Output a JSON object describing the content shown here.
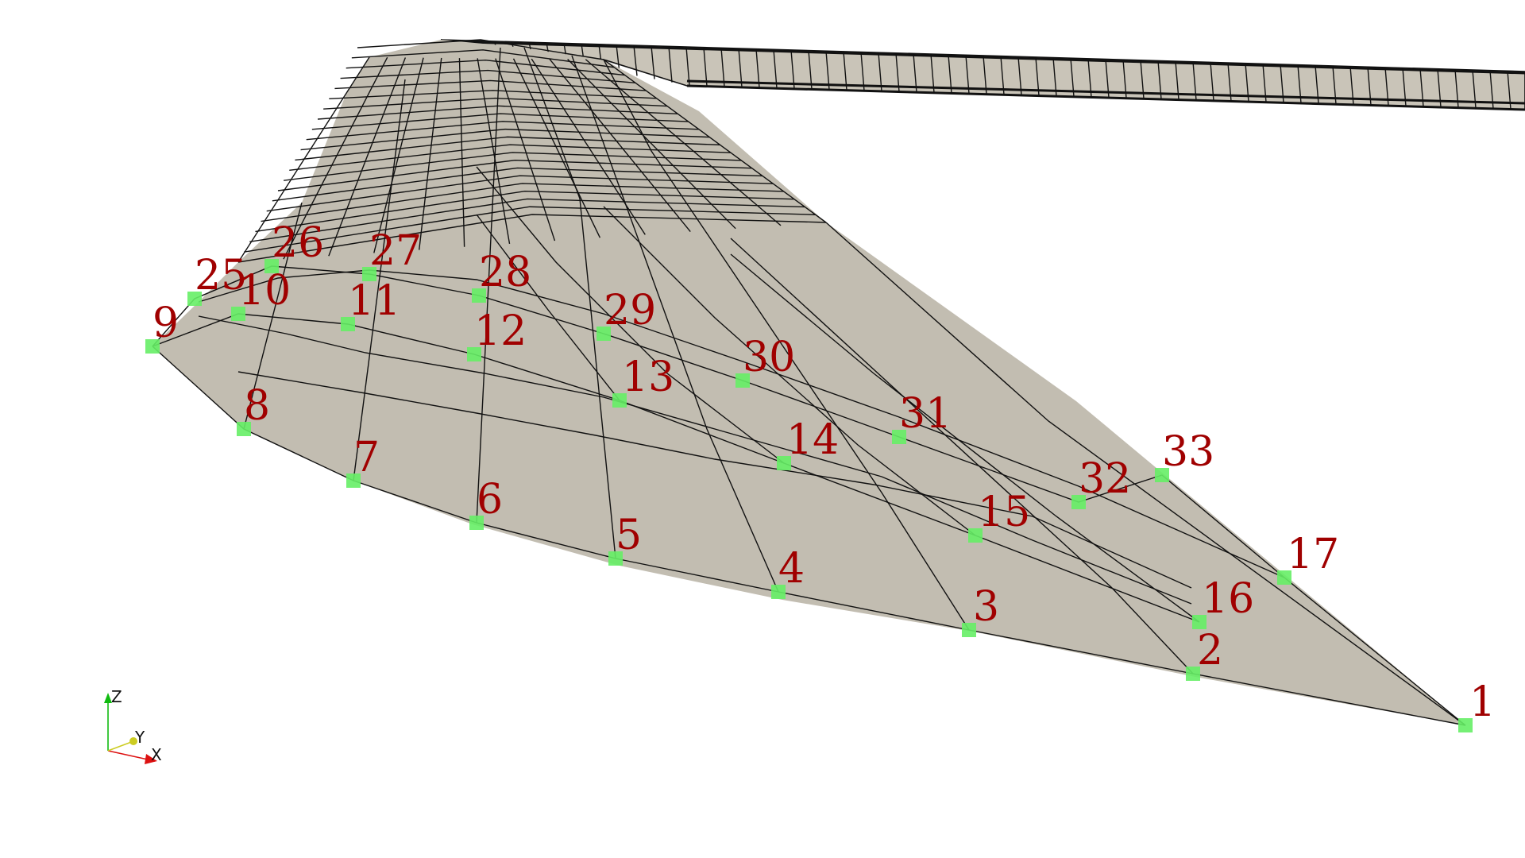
{
  "colors": {
    "surface": "#c2bdb1",
    "mesh_lines": "#111111",
    "marker": "#66ee66",
    "label": "#a00000",
    "axis_x": "#dd1111",
    "axis_y": "#cccc22",
    "axis_z": "#11bb11"
  },
  "point_labels": [
    "1",
    "2",
    "3",
    "4",
    "5",
    "6",
    "7",
    "8",
    "9",
    "10",
    "11",
    "12",
    "13",
    "14",
    "15",
    "16",
    "17",
    "25",
    "26",
    "27",
    "28",
    "29",
    "30",
    "31",
    "32",
    "33"
  ],
  "axes": {
    "x_label": "X",
    "y_label": "Y",
    "z_label": "Z"
  }
}
